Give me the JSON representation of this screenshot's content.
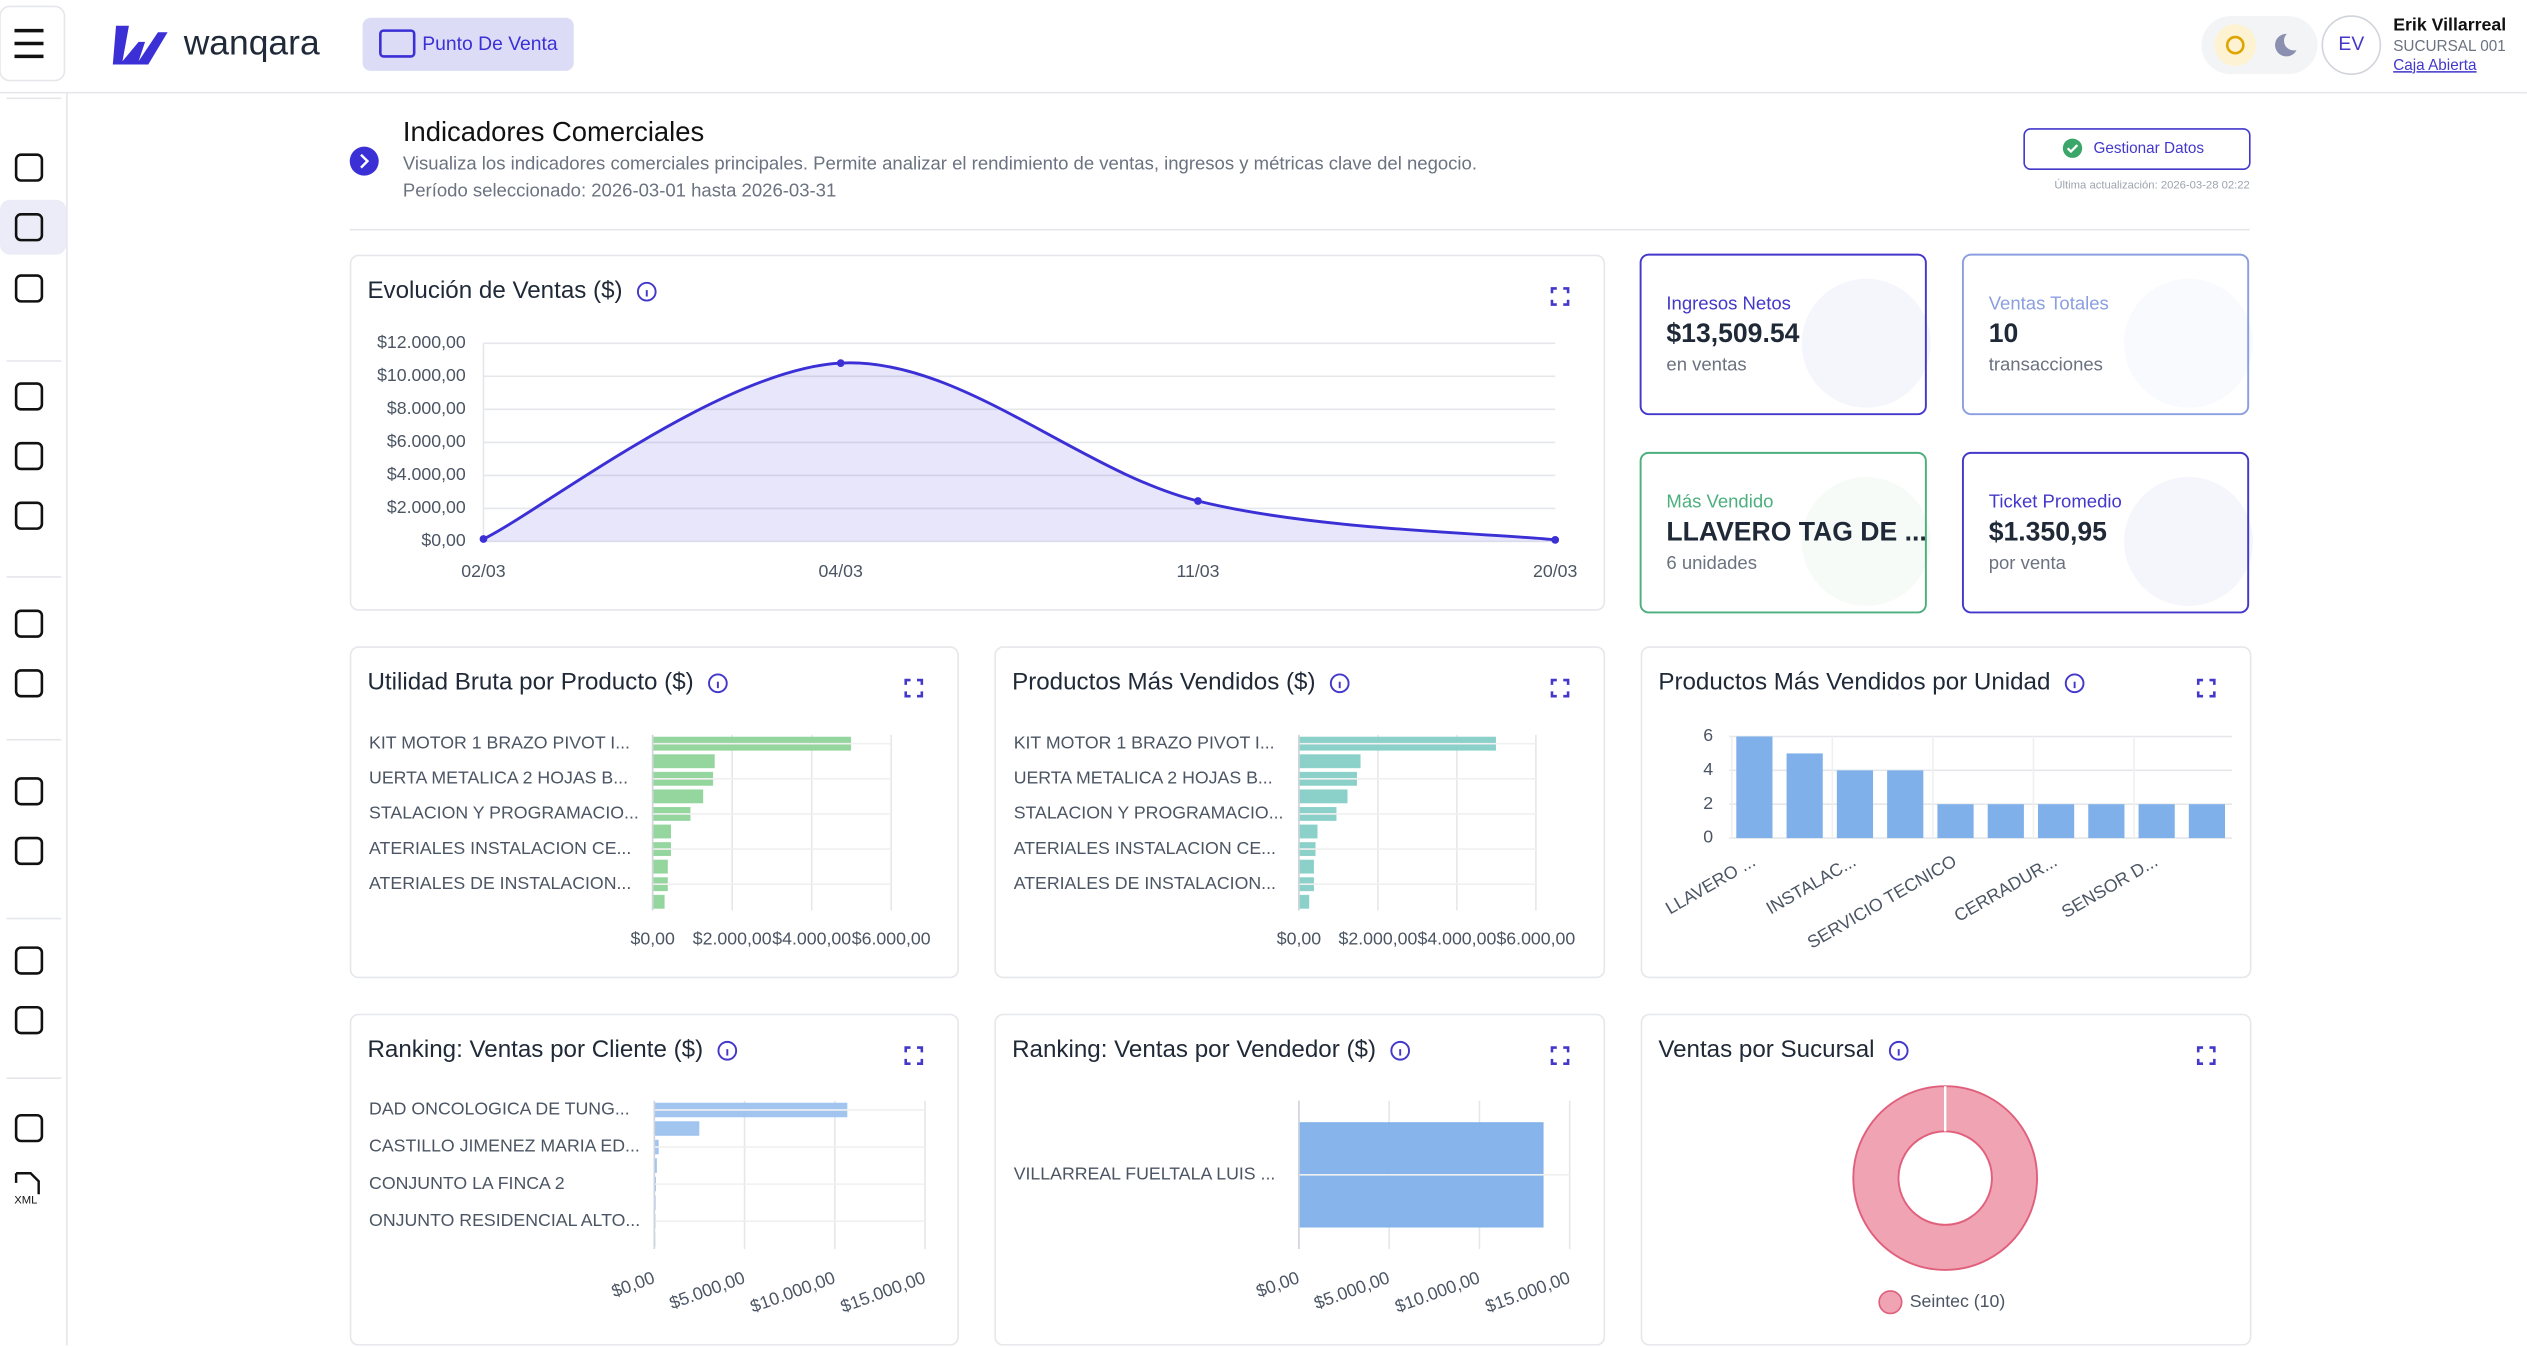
{
  "header": {
    "brand": "wanqara",
    "module": "Punto De Venta",
    "user": {
      "initials": "EV",
      "name": "Erik Villarreal",
      "branch": "SUCURSAL 001",
      "status": "Caja Abierta"
    }
  },
  "sidebar": {
    "icon_label": "XML"
  },
  "page": {
    "title": "Indicadores Comerciales",
    "description": "Visualiza los indicadores comerciales principales. Permite analizar el rendimiento de ventas, ingresos y métricas clave del negocio.",
    "period": "Período seleccionado: 2026-03-01 hasta 2026-03-31",
    "action": "Gestionar Datos",
    "last_update": "Última actualización: 2026-03-28 02:22"
  },
  "kpis": [
    {
      "label": "Ingresos Netos",
      "value": "$13,509.54",
      "sub": "en ventas",
      "color": "#4338ca"
    },
    {
      "label": "Ventas Totales",
      "value": "10",
      "sub": "transacciones",
      "color": "#8b9fe0"
    },
    {
      "label": "Más Vendido",
      "value": "LLAVERO TAG DE ...",
      "sub": "6 unidades",
      "color": "#4caf7d"
    },
    {
      "label": "Ticket Promedio",
      "value": "$1.350,95",
      "sub": "por venta",
      "color": "#4338ca"
    }
  ],
  "chart_data": [
    {
      "type": "line",
      "title": "Evolución de Ventas ($)",
      "categories": [
        "02/03",
        "04/03",
        "11/03",
        "20/03"
      ],
      "values": [
        150,
        10800,
        2450,
        100
      ],
      "color": "#3b2fd6",
      "ylim": [
        0,
        12000
      ],
      "yticks": [
        {
          "value": 0,
          "label": "$0,00"
        },
        {
          "value": 2000,
          "label": "$2.000,00"
        },
        {
          "value": 4000,
          "label": "$4.000,00"
        },
        {
          "value": 6000,
          "label": "$6.000,00"
        },
        {
          "value": 8000,
          "label": "$8.000,00"
        },
        {
          "value": 10000,
          "label": "$10.000,00"
        },
        {
          "value": 12000,
          "label": "$12.000,00"
        }
      ],
      "grid": true
    },
    {
      "type": "hbar",
      "title": "Utilidad Bruta por Producto ($)",
      "categories": [
        "KIT MOTOR 1 BRAZO PIVOT I...",
        null,
        "UERTA METALICA 2 HOJAS B...",
        null,
        "STALACION Y PROGRAMACIO...",
        null,
        "ATERIALES INSTALACION CE...",
        null,
        "ATERIALES DE INSTALACION...",
        null
      ],
      "values": [
        4970,
        1540,
        1500,
        1250,
        930,
        440,
        440,
        360,
        360,
        280
      ],
      "color": "#8fd49a",
      "xlim": [
        0,
        6000
      ],
      "xticks": [
        {
          "value": 0,
          "label": "$0,00"
        },
        {
          "value": 2000,
          "label": "$2.000,00"
        },
        {
          "value": 4000,
          "label": "$4.000,00"
        },
        {
          "value": 6000,
          "label": "$6.000,00"
        }
      ],
      "grid": true
    },
    {
      "type": "hbar",
      "title": "Productos Más Vendidos ($)",
      "categories": [
        "KIT MOTOR 1 BRAZO PIVOT I...",
        null,
        "UERTA METALICA 2 HOJAS B...",
        null,
        "STALACION Y PROGRAMACIO...",
        null,
        "ATERIALES INSTALACION CE...",
        null,
        "ATERIALES DE INSTALACION...",
        null
      ],
      "values": [
        4970,
        1540,
        1450,
        1210,
        930,
        450,
        400,
        360,
        360,
        240
      ],
      "color": "#86cfc6",
      "xlim": [
        0,
        6000
      ],
      "xticks": [
        {
          "value": 0,
          "label": "$0,00"
        },
        {
          "value": 2000,
          "label": "$2.000,00"
        },
        {
          "value": 4000,
          "label": "$4.000,00"
        },
        {
          "value": 6000,
          "label": "$6.000,00"
        }
      ],
      "grid": true
    },
    {
      "type": "bar",
      "title": "Productos Más Vendidos por Unidad",
      "categories": [
        "LLAVERO ...",
        null,
        "INSTALAC...",
        null,
        "SERVICIO TECNICO",
        null,
        "CERRADUR...",
        null,
        "SENSOR D...",
        null
      ],
      "values": [
        6,
        5,
        4,
        4,
        2,
        2,
        2,
        2,
        2,
        2
      ],
      "color": "#7fb0ea",
      "ylim": [
        0,
        6
      ],
      "yticks": [
        0,
        2,
        4,
        6
      ],
      "grid": true
    },
    {
      "type": "hbar",
      "title": "Ranking: Ventas por Cliente ($)",
      "categories": [
        "DAD ONCOLOGICA DE TUNG...",
        null,
        "CASTILLO JIMENEZ MARIA ED...",
        null,
        "CONJUNTO LA FINCA 2",
        null,
        "ONJUNTO RESIDENCIAL ALTO...",
        null
      ],
      "values": [
        10650,
        2450,
        200,
        100,
        50,
        30,
        20,
        10
      ],
      "color": "#9cc2ee",
      "xlim": [
        0,
        15000
      ],
      "xticks": [
        {
          "value": 0,
          "label": "$0,00"
        },
        {
          "value": 5000,
          "label": "$5.000,00"
        },
        {
          "value": 10000,
          "label": "$10.000,00"
        },
        {
          "value": 15000,
          "label": "$15.000,00"
        }
      ],
      "grid": true
    },
    {
      "type": "hbar",
      "title": "Ranking: Ventas por Vendedor ($)",
      "categories": [
        "VILLARREAL FUELTALA LUIS ..."
      ],
      "values": [
        13509.54
      ],
      "color": "#7fb0ea",
      "xlim": [
        0,
        15000
      ],
      "xticks": [
        {
          "value": 0,
          "label": "$0,00"
        },
        {
          "value": 5000,
          "label": "$5.000,00"
        },
        {
          "value": 10000,
          "label": "$10.000,00"
        },
        {
          "value": 15000,
          "label": "$15.000,00"
        }
      ],
      "grid": true
    },
    {
      "type": "donut",
      "title": "Ventas por Sucursal",
      "categories": [
        "Seintec"
      ],
      "values": [
        10
      ],
      "legend_labels": [
        "Seintec (10)"
      ],
      "colors": [
        "#f0a3b3"
      ]
    }
  ]
}
